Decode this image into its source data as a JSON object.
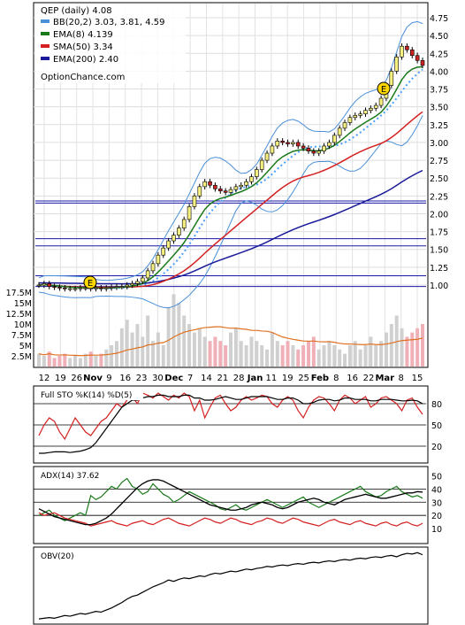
{
  "chart_data": {
    "type": "line",
    "symbol": "QEP",
    "title": "QEP (daily) 4.08",
    "watermark": "OptionChance.com",
    "x_ticks": [
      "12",
      "19",
      "26",
      "Nov",
      "9",
      "16",
      "23",
      "30",
      "Dec",
      "7",
      "14",
      "21",
      "28",
      "Jan",
      "11",
      "19",
      "25",
      "Feb",
      "8",
      "16",
      "22",
      "Mar",
      "8",
      "15"
    ],
    "price_axis": {
      "ticks": [
        "4.75",
        "4.50",
        "4.25",
        "4.00",
        "3.75",
        "3.50",
        "3.25",
        "3.00",
        "2.75",
        "2.50",
        "2.25",
        "2.00",
        "1.75",
        "1.50",
        "1.25",
        "1.00"
      ],
      "ylim": [
        0.9,
        4.9
      ]
    },
    "volume_axis": {
      "ticks": [
        "17.5M",
        "15M",
        "12.5M",
        "10M",
        "7.5M",
        "5M",
        "2.5M"
      ]
    },
    "legend": [
      {
        "label": "BB(20,2) 3.03, 3.81, 4.59",
        "color": "#4a90d9"
      },
      {
        "label": "EMA(8) 4.139",
        "color": "#1a7a1a"
      },
      {
        "label": "SMA(50) 3.34",
        "color": "#d42020"
      },
      {
        "label": "EMA(200) 2.40",
        "color": "#1a1a9a"
      }
    ],
    "earnings_marker": "E",
    "closes": [
      1.0,
      1.02,
      0.98,
      0.97,
      0.96,
      0.95,
      0.95,
      0.95,
      0.96,
      0.96,
      0.95,
      0.96,
      0.95,
      0.96,
      0.97,
      0.98,
      0.98,
      1.0,
      1.02,
      1.05,
      1.1,
      1.2,
      1.3,
      1.42,
      1.52,
      1.62,
      1.7,
      1.8,
      1.92,
      2.1,
      2.25,
      2.38,
      2.45,
      2.4,
      2.35,
      2.32,
      2.3,
      2.34,
      2.38,
      2.4,
      2.45,
      2.52,
      2.62,
      2.75,
      2.85,
      2.95,
      3.02,
      3.0,
      2.98,
      3.0,
      2.95,
      2.92,
      2.88,
      2.85,
      2.88,
      2.95,
      3.0,
      3.1,
      3.2,
      3.28,
      3.35,
      3.38,
      3.4,
      3.45,
      3.48,
      3.52,
      3.62,
      3.8,
      4.0,
      4.2,
      4.35,
      4.3,
      4.22,
      4.15,
      4.08
    ],
    "volume_millions": [
      3,
      2.5,
      3.5,
      2,
      2.5,
      3,
      2,
      2.5,
      2,
      3,
      3.5,
      2.5,
      3,
      4,
      5,
      6,
      9,
      11,
      8,
      10,
      7,
      12,
      6,
      8,
      5,
      14,
      17,
      15,
      12,
      10,
      8,
      9,
      7,
      6,
      7,
      6,
      5,
      8,
      9,
      6,
      5,
      7,
      6,
      5,
      4,
      8,
      6,
      5,
      6,
      5,
      4,
      5,
      6,
      7,
      4,
      5,
      6,
      5,
      4,
      3,
      5,
      6,
      4,
      5,
      7,
      5,
      6,
      8,
      10,
      12,
      9,
      7,
      8,
      9,
      10
    ],
    "stoch": {
      "label": "Full STO %K(14) %D(5)",
      "ticks": [
        "80",
        "50",
        "20"
      ],
      "k": [
        35,
        50,
        60,
        55,
        40,
        30,
        45,
        60,
        50,
        40,
        35,
        45,
        55,
        60,
        70,
        80,
        75,
        85,
        90,
        80,
        95,
        92,
        88,
        95,
        90,
        85,
        92,
        88,
        95,
        90,
        70,
        85,
        60,
        75,
        88,
        92,
        80,
        70,
        75,
        85,
        90,
        85,
        88,
        92,
        90,
        80,
        75,
        85,
        90,
        85,
        70,
        60,
        75,
        85,
        90,
        88,
        80,
        70,
        85,
        92,
        88,
        80,
        85,
        90,
        75,
        80,
        88,
        90,
        85,
        80,
        70,
        85,
        88,
        75,
        65
      ],
      "d": [
        10,
        10,
        11,
        12,
        12,
        12,
        11,
        12,
        13,
        15,
        18,
        25,
        35,
        45,
        55,
        65,
        75,
        80,
        85,
        85,
        88,
        90,
        90,
        92,
        92,
        90,
        90,
        90,
        92,
        92,
        88,
        88,
        85,
        85,
        86,
        88,
        90,
        88,
        86,
        86,
        88,
        90,
        90,
        90,
        90,
        88,
        86,
        86,
        88,
        88,
        85,
        80,
        80,
        82,
        85,
        86,
        86,
        84,
        85,
        88,
        88,
        86,
        86,
        86,
        84,
        84,
        86,
        86,
        86,
        85,
        84,
        84,
        85,
        84,
        80
      ]
    },
    "adx": {
      "label": "ADX(14) 37.62",
      "ticks": [
        "50",
        "40",
        "30",
        "20",
        "10"
      ],
      "adx": [
        25,
        23,
        21,
        19,
        18,
        17,
        16,
        15,
        14,
        13,
        13,
        14,
        16,
        18,
        21,
        25,
        29,
        33,
        37,
        41,
        44,
        46,
        47,
        47,
        46,
        44,
        42,
        40,
        38,
        36,
        34,
        32,
        30,
        28,
        27,
        26,
        25,
        24,
        24,
        25,
        26,
        28,
        29,
        30,
        29,
        28,
        26,
        25,
        26,
        28,
        30,
        31,
        32,
        33,
        32,
        30,
        29,
        28,
        30,
        32,
        33,
        34,
        35,
        36,
        35,
        34,
        33,
        33,
        34,
        35,
        36,
        37,
        37,
        38,
        37.6
      ],
      "plus_di": [
        20,
        22,
        24,
        20,
        18,
        16,
        18,
        20,
        22,
        20,
        35,
        32,
        34,
        38,
        42,
        40,
        45,
        48,
        42,
        40,
        36,
        38,
        44,
        40,
        36,
        34,
        30,
        32,
        35,
        38,
        36,
        34,
        32,
        30,
        28,
        25,
        24,
        26,
        28,
        25,
        24,
        26,
        28,
        30,
        32,
        30,
        28,
        26,
        28,
        30,
        32,
        34,
        30,
        28,
        26,
        28,
        30,
        32,
        34,
        36,
        38,
        40,
        42,
        38,
        36,
        34,
        35,
        38,
        40,
        42,
        38,
        36,
        34,
        35,
        33
      ],
      "minus_di": [
        22,
        20,
        21,
        22,
        20,
        18,
        17,
        16,
        15,
        14,
        12,
        13,
        14,
        15,
        16,
        14,
        13,
        12,
        14,
        15,
        16,
        14,
        13,
        15,
        17,
        18,
        16,
        14,
        13,
        12,
        14,
        16,
        18,
        17,
        15,
        14,
        16,
        18,
        17,
        15,
        14,
        13,
        15,
        16,
        18,
        17,
        15,
        14,
        16,
        18,
        17,
        15,
        14,
        13,
        12,
        14,
        16,
        17,
        15,
        14,
        13,
        15,
        16,
        14,
        13,
        12,
        14,
        15,
        13,
        12,
        14,
        15,
        13,
        12,
        14
      ]
    },
    "obv": {
      "label": "OBV(20)",
      "values": [
        5,
        6,
        7,
        6,
        8,
        10,
        9,
        11,
        13,
        12,
        14,
        16,
        15,
        18,
        21,
        25,
        29,
        34,
        38,
        40,
        44,
        48,
        52,
        55,
        58,
        62,
        60,
        63,
        65,
        64,
        66,
        68,
        67,
        70,
        72,
        71,
        73,
        75,
        74,
        76,
        78,
        77,
        79,
        80,
        82,
        81,
        83,
        84,
        83,
        85,
        86,
        85,
        87,
        88,
        87,
        89,
        90,
        89,
        91,
        92,
        91,
        93,
        94,
        93,
        95,
        96,
        95,
        97,
        98,
        96,
        99,
        101,
        100,
        102,
        99
      ]
    }
  }
}
